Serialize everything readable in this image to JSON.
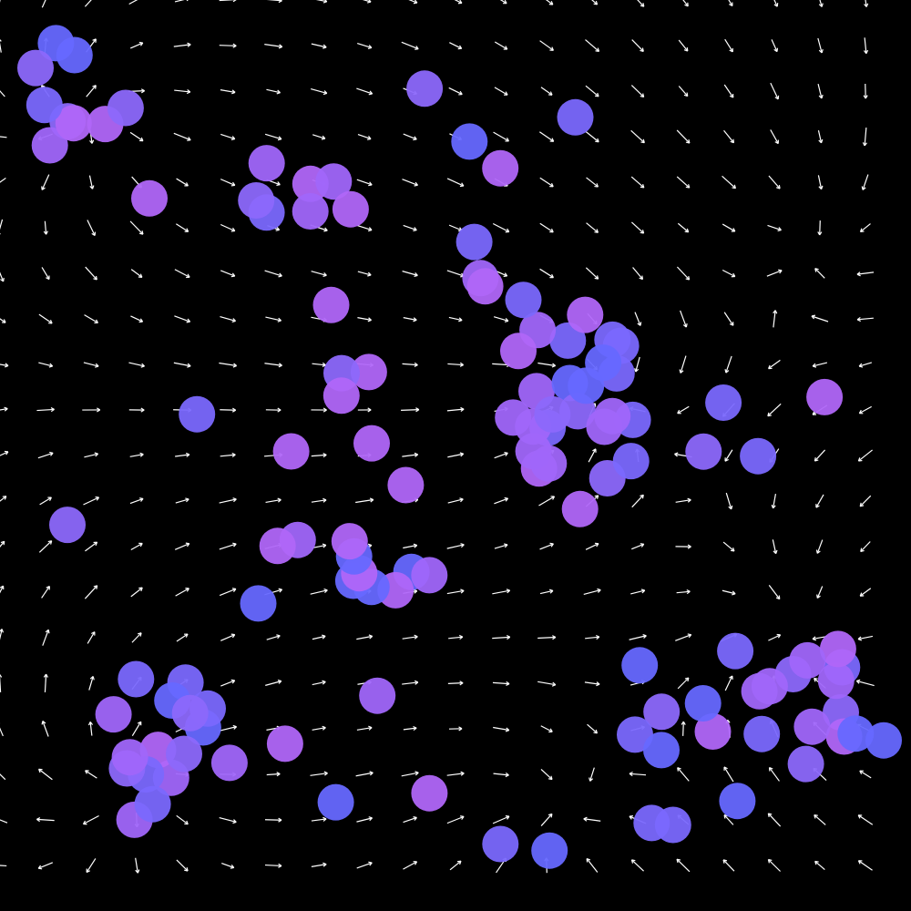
{
  "scene": {
    "background": "#000000",
    "arrow_color": "#ffffff",
    "particle_colors": [
      "#b066f8",
      "#a066fa",
      "#8c68fb",
      "#7a68fd",
      "#6668ff"
    ],
    "particle_count": 120
  }
}
